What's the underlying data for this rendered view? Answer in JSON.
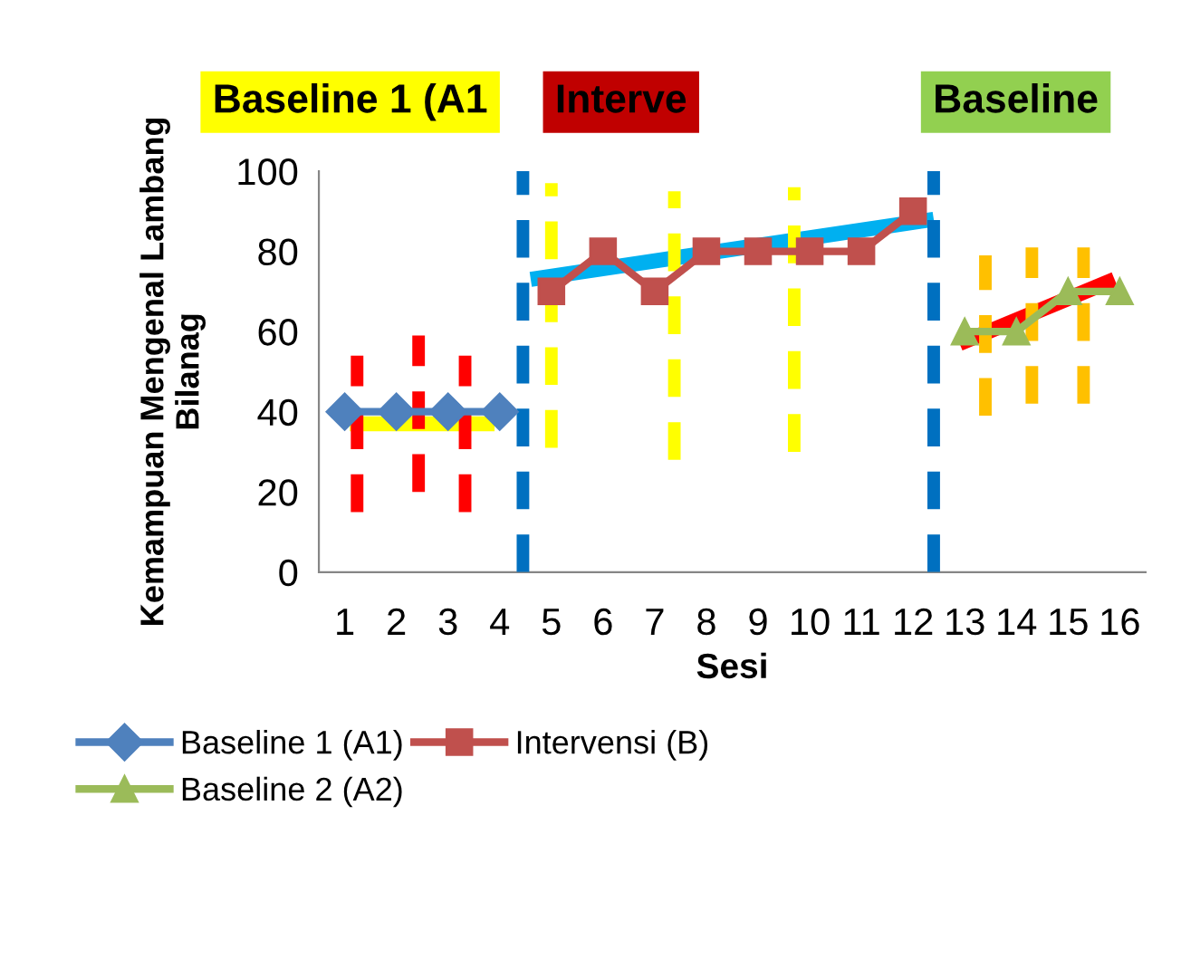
{
  "chart_data": {
    "type": "line",
    "xlabel": "Sesi",
    "ylabel": "Kemampuan Mengenal Lambang\nBilanag",
    "annotations": [
      "Baseline 1 (A1",
      "Interve",
      "Baseline"
    ],
    "x": [
      1,
      2,
      3,
      4,
      5,
      6,
      7,
      8,
      9,
      10,
      11,
      12,
      13,
      14,
      15,
      16
    ],
    "xlim": [
      0.5,
      16.5
    ],
    "xticks": [
      1,
      2,
      3,
      4,
      5,
      6,
      7,
      8,
      9,
      10,
      11,
      12,
      13,
      14,
      15,
      16
    ],
    "ylim": [
      0,
      100
    ],
    "yticks": [
      0,
      20,
      40,
      60,
      80,
      100
    ],
    "grid": false,
    "legend": "bottom",
    "series": [
      {
        "name": "Baseline 1 (A1)",
        "color": "#4f81bd",
        "marker": "diamond",
        "values": [
          40,
          40,
          40,
          40,
          null,
          null,
          null,
          null,
          null,
          null,
          null,
          null,
          null,
          null,
          null,
          null
        ]
      },
      {
        "name": "Intervensi (B)",
        "color": "#c0504d",
        "marker": "square",
        "values": [
          null,
          null,
          null,
          null,
          70,
          80,
          70,
          80,
          80,
          80,
          80,
          90,
          null,
          null,
          null,
          null
        ]
      },
      {
        "name": "Baseline 2 (A2)",
        "color": "#9bbb59",
        "marker": "triangle",
        "values": [
          null,
          null,
          null,
          null,
          null,
          null,
          null,
          null,
          null,
          null,
          null,
          null,
          60,
          60,
          70,
          70
        ]
      },
      {
        "color": "#ffff00",
        "x": [
          1.1,
          3.9
        ],
        "values": [
          37,
          37
        ]
      },
      {
        "color": "#00b0f0",
        "x": [
          4.6,
          12.4
        ],
        "values": [
          73,
          88
        ]
      },
      {
        "color": "#ff0000",
        "x": [
          12.9,
          15.9
        ],
        "values": [
          57,
          73
        ]
      },
      {
        "color": "#ff0000",
        "line_style": "dashed",
        "x": [
          1.24,
          1.24
        ],
        "values": [
          15,
          54
        ]
      },
      {
        "color": "#ff0000",
        "line_style": "dashed",
        "x": [
          2.43,
          2.43
        ],
        "values": [
          20,
          59
        ]
      },
      {
        "color": "#ff0000",
        "line_style": "dashed",
        "x": [
          3.33,
          3.33
        ],
        "values": [
          15,
          54
        ]
      },
      {
        "color": "#ffff00",
        "line_style": "dashed",
        "x": [
          5.0,
          5.0
        ],
        "values": [
          31,
          97
        ]
      },
      {
        "color": "#ffff00",
        "line_style": "dashed",
        "x": [
          7.38,
          7.38
        ],
        "values": [
          28,
          95
        ]
      },
      {
        "color": "#ffff00",
        "line_style": "dashed",
        "x": [
          9.7,
          9.7
        ],
        "values": [
          30,
          96
        ]
      },
      {
        "color": "#ffc000",
        "line_style": "dashed",
        "x": [
          13.4,
          13.4
        ],
        "values": [
          39,
          79
        ]
      },
      {
        "color": "#ffc000",
        "line_style": "dashed",
        "x": [
          14.3,
          14.3
        ],
        "values": [
          42,
          81
        ]
      },
      {
        "color": "#ffc000",
        "line_style": "dashed",
        "x": [
          15.3,
          15.3
        ],
        "values": [
          42,
          81
        ]
      }
    ],
    "ref_lines": [
      {
        "axis": "x",
        "value": 4.45,
        "color": "#0070c0",
        "line_style": "dashed"
      },
      {
        "axis": "x",
        "value": 12.4,
        "color": "#0070c0",
        "line_style": "dashed"
      }
    ]
  }
}
